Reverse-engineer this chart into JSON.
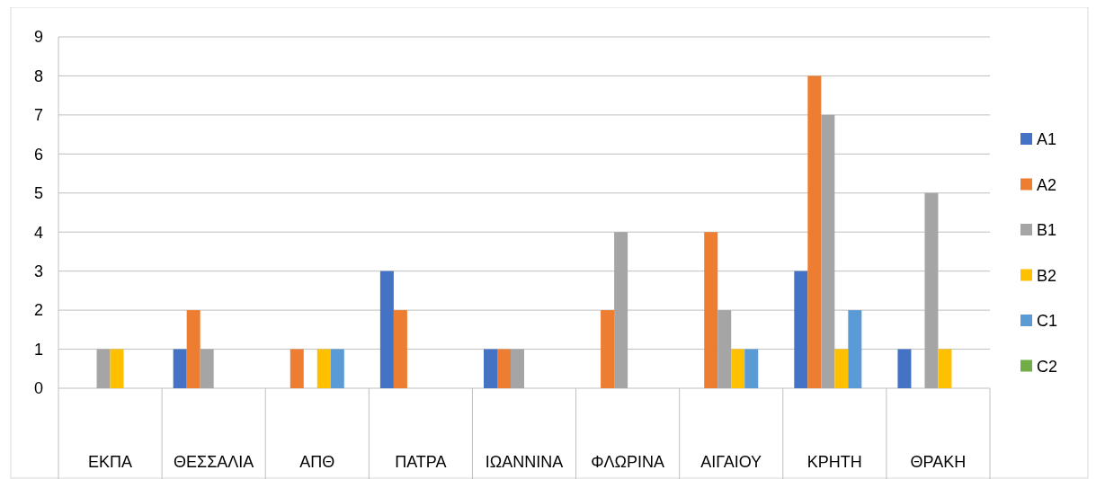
{
  "chart_data": {
    "type": "bar",
    "categories": [
      "ΕΚΠΑ",
      "ΘΕΣΣΑΛΙΑ",
      "ΑΠΘ",
      "ΠΑΤΡΑ",
      "ΙΩΑΝΝΙΝΑ",
      "ΦΛΩΡΙΝΑ",
      "ΑΙΓΑΙΟΥ",
      "ΚΡΗΤΗ",
      "ΘΡΑΚΗ"
    ],
    "series": [
      {
        "name": "A1",
        "color": "#4472c4",
        "values": [
          0,
          1,
          0,
          3,
          1,
          0,
          0,
          3,
          1
        ]
      },
      {
        "name": "A2",
        "color": "#ed7d31",
        "values": [
          0,
          2,
          1,
          2,
          1,
          2,
          4,
          8,
          0
        ]
      },
      {
        "name": "B1",
        "color": "#a5a5a5",
        "values": [
          1,
          1,
          0,
          0,
          1,
          4,
          2,
          7,
          5
        ]
      },
      {
        "name": "B2",
        "color": "#ffc000",
        "values": [
          1,
          0,
          1,
          0,
          0,
          0,
          1,
          1,
          1
        ]
      },
      {
        "name": "C1",
        "color": "#5b9bd5",
        "values": [
          0,
          0,
          1,
          0,
          0,
          0,
          1,
          2,
          0
        ]
      },
      {
        "name": "C2",
        "color": "#70ad47",
        "values": [
          0,
          0,
          0,
          0,
          0,
          0,
          0,
          0,
          0
        ]
      }
    ],
    "ylim": [
      0,
      9
    ],
    "yticks": [
      0,
      1,
      2,
      3,
      4,
      5,
      6,
      7,
      8,
      9
    ],
    "grid": "y",
    "legend": "right"
  }
}
